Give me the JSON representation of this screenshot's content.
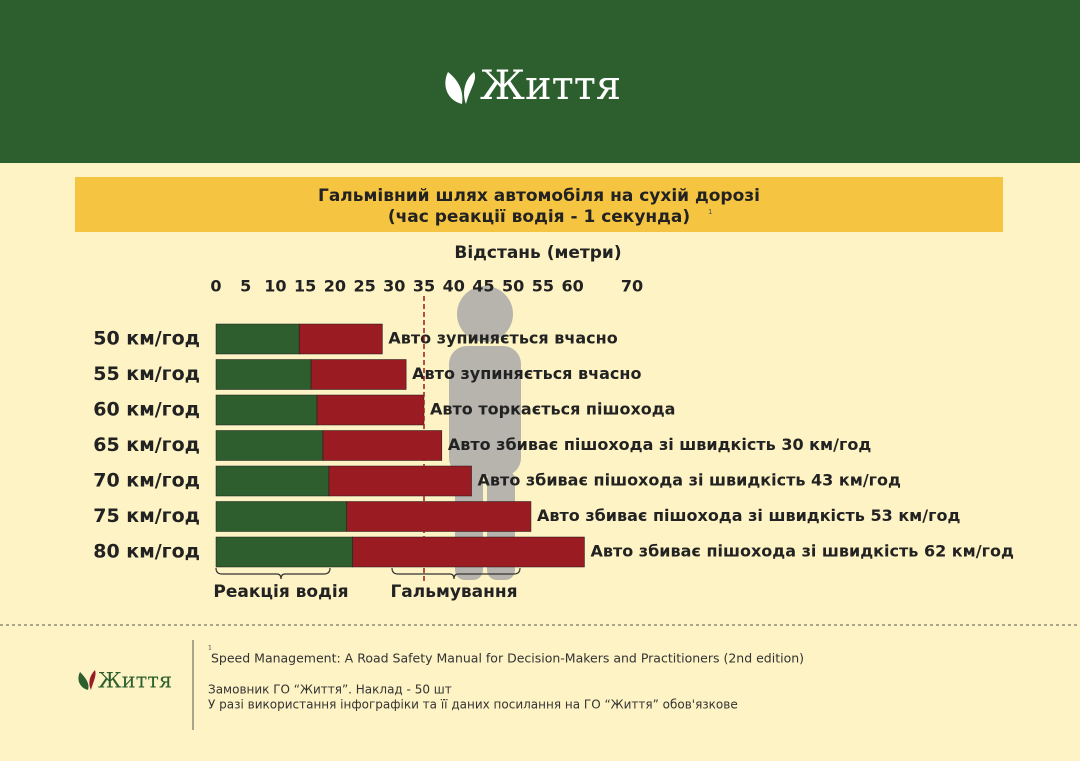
{
  "header": {
    "logo": "Життя"
  },
  "chart_data": {
    "type": "bar",
    "orientation": "horizontal",
    "stacked": true,
    "title": "Гальмівний шлях автомобіля на сухій дорозі",
    "subtitle": "(час реакції водія - 1 секунда)",
    "title_note": "1",
    "x_label": "Відстань (метри)",
    "categories": [
      "50 км/год",
      "55 км/год",
      "60 км/год",
      "65 км/год",
      "70 км/год",
      "75 км/год",
      "80 км/год"
    ],
    "series": [
      {
        "name": "Реакція водія",
        "color": "#2e5e2e",
        "values": [
          14,
          16,
          17,
          18,
          19,
          22,
          23
        ]
      },
      {
        "name": "Гальмування",
        "color": "#9b1b22",
        "values": [
          14,
          16,
          18,
          20,
          24,
          31,
          39
        ]
      }
    ],
    "bar_labels": [
      "Авто зупиняється вчасно",
      "Авто зупиняється вчасно",
      "Авто торкається пішохода",
      "Авто збиває пішохода зі швидкість 30 км/год",
      "Авто збиває пішохода зі швидкість 43 км/год",
      "Авто збиває пішохода зі швидкість 53 км/год",
      "Авто збиває пішохода зі швидкість 62 км/год"
    ],
    "xlim": [
      0,
      70
    ],
    "xticks": [
      0,
      5,
      10,
      15,
      20,
      25,
      30,
      35,
      40,
      45,
      50,
      55,
      60,
      70
    ],
    "reference_line": 35
  },
  "footer": {
    "note_number": "1",
    "source": "Speed Management: A Road Safety Manual for Decision-Makers and Practitioners (2nd edition)",
    "line1": "Замовник ГО “Життя”. Наклад - 50 шт",
    "line2": "У разі використання інфографіки та її даних посилання на ГО “Життя” обов'язкове"
  }
}
